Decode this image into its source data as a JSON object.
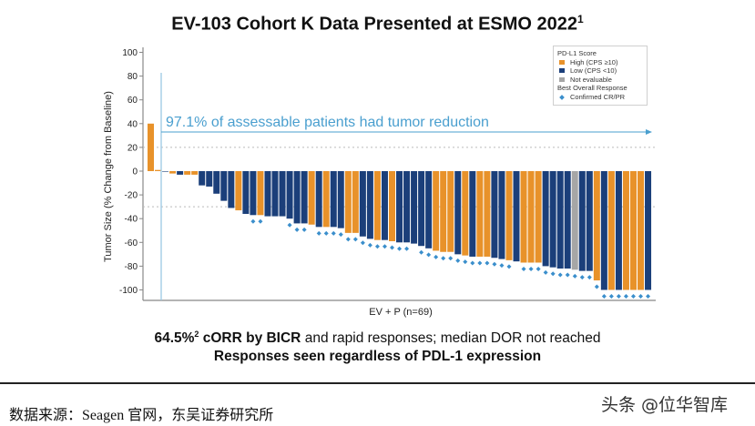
{
  "title": {
    "text": "EV-103 Cohort K Data Presented at ESMO 2022",
    "superscript": "1"
  },
  "chart_data": {
    "type": "bar",
    "subtype": "waterfall",
    "ylabel": "Tumor Size (% Change from Baseline)",
    "xlabel": "EV + P (n=69)",
    "ylim": [
      -100,
      100
    ],
    "yticks": [
      100,
      80,
      60,
      40,
      20,
      0,
      -20,
      -40,
      -60,
      -80,
      -100
    ],
    "reference_lines": [
      20,
      -30
    ],
    "annotation": "97.1% of assessable patients had tumor reduction",
    "legend": {
      "position": "top-right",
      "title": "PD-L1 Score",
      "entries": [
        {
          "key": "H",
          "label": "High (CPS ≥10)",
          "color": "#E8922A"
        },
        {
          "key": "L",
          "label": "Low (CPS <10)",
          "color": "#1B3F7A"
        },
        {
          "key": "N",
          "label": "Not evaluable",
          "color": "#A6A6A6"
        }
      ],
      "response_title": "Best Overall Response",
      "response_label": "Confirmed CR/PR",
      "response_color": "#3B8FCC"
    },
    "values": [
      40,
      1,
      0,
      -2,
      -3,
      -3,
      -3,
      -12,
      -13,
      -19,
      -25,
      -31,
      -33,
      -36,
      -37,
      -37,
      -38,
      -38,
      -38,
      -40,
      -44,
      -44,
      -45,
      -47,
      -47,
      -47,
      -48,
      -52,
      -52,
      -55,
      -57,
      -58,
      -58,
      -59,
      -60,
      -60,
      -61,
      -63,
      -65,
      -67,
      -68,
      -68,
      -70,
      -71,
      -72,
      -72,
      -72,
      -73,
      -74,
      -75,
      -76,
      -77,
      -77,
      -77,
      -80,
      -81,
      -82,
      -82,
      -83,
      -84,
      -84,
      -92,
      -100,
      -100,
      -100,
      -100,
      -100,
      -100,
      -100
    ],
    "pdl1": [
      "H",
      "H",
      "L",
      "H",
      "L",
      "H",
      "H",
      "L",
      "L",
      "L",
      "L",
      "L",
      "H",
      "L",
      "L",
      "H",
      "L",
      "L",
      "L",
      "L",
      "L",
      "L",
      "H",
      "L",
      "H",
      "L",
      "L",
      "H",
      "H",
      "L",
      "L",
      "H",
      "L",
      "H",
      "L",
      "L",
      "L",
      "L",
      "L",
      "H",
      "H",
      "H",
      "L",
      "H",
      "L",
      "H",
      "H",
      "L",
      "L",
      "H",
      "L",
      "H",
      "H",
      "H",
      "L",
      "L",
      "L",
      "L",
      "N",
      "L",
      "L",
      "H",
      "L",
      "H",
      "L",
      "H",
      "H",
      "H",
      "L"
    ],
    "confirmed_response": [
      15,
      16,
      20,
      21,
      22,
      24,
      25,
      26,
      27,
      28,
      29,
      30,
      31,
      32,
      33,
      34,
      35,
      36,
      38,
      39,
      40,
      41,
      42,
      43,
      44,
      45,
      46,
      47,
      48,
      49,
      50,
      52,
      53,
      54,
      55,
      56,
      57,
      58,
      59,
      60,
      61,
      62,
      63,
      64,
      65,
      66,
      67,
      68,
      69
    ]
  },
  "summary": {
    "line1_bold": "64.5%",
    "line1_sup": "2",
    "line1_bold2": " cORR by BICR",
    "line1_rest": " and rapid responses; median DOR not reached",
    "line2": "Responses seen regardless of PDL-1 expression"
  },
  "footer": {
    "source": "数据来源：Seagen 官网，东吴证券研究所",
    "watermark": "头条 @位华智库"
  }
}
